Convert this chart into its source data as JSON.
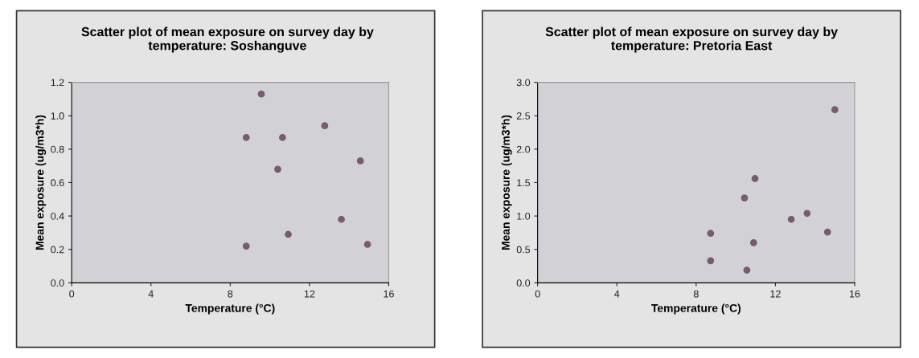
{
  "chart_data": [
    {
      "type": "scatter",
      "title": "Scatter plot of mean exposure on survey day by temperature: Soshanguve",
      "xlabel": "Temperature (°C)",
      "ylabel": "Mean exposure (ug/m3*h)",
      "xlim": [
        0,
        16
      ],
      "xticks": [
        0,
        4,
        8,
        12,
        16
      ],
      "ylim": [
        0,
        1.2
      ],
      "yticks": [
        {
          "value": 0,
          "label": "0.0"
        },
        {
          "value": 0.2,
          "label": "0.2"
        },
        {
          "value": 0.4,
          "label": "0.4"
        },
        {
          "value": 0.6,
          "label": "0.6"
        },
        {
          "value": 0.8,
          "label": "0.8"
        },
        {
          "value": 1.0,
          "label": "1.0"
        },
        {
          "value": 1.2,
          "label": "1.2"
        }
      ],
      "grid": false,
      "legend": false,
      "marker": "circle",
      "series": [
        {
          "color": "#7a5a6e",
          "x": [
            9.57,
            12.77,
            8.81,
            10.64,
            14.57,
            10.4,
            13.61,
            10.93,
            8.81,
            14.93
          ],
          "values": [
            1.13,
            0.94,
            0.87,
            0.87,
            0.73,
            0.68,
            0.38,
            0.29,
            0.22,
            0.23
          ]
        }
      ]
    },
    {
      "type": "scatter",
      "title": "Scatter plot of mean exposure on survey day by temperature: Pretoria East",
      "xlabel": "Temperature (°C)",
      "ylabel": "Mean exposure (ug/m3*h)",
      "xlim": [
        0,
        16
      ],
      "xticks": [
        0,
        4,
        8,
        12,
        16
      ],
      "ylim": [
        0,
        3.0
      ],
      "yticks": [
        {
          "value": 0,
          "label": "0.0"
        },
        {
          "value": 0.5,
          "label": "0.5"
        },
        {
          "value": 1.0,
          "label": "1.0"
        },
        {
          "value": 1.5,
          "label": "1.5"
        },
        {
          "value": 2.0,
          "label": "2.0"
        },
        {
          "value": 2.5,
          "label": "2.5"
        },
        {
          "value": 3.0,
          "label": "3.0"
        }
      ],
      "grid": false,
      "legend": false,
      "marker": "circle",
      "series": [
        {
          "color": "#7a5a6e",
          "x": [
            15.0,
            10.97,
            10.44,
            13.6,
            12.8,
            8.73,
            14.63,
            10.9,
            8.73,
            10.56
          ],
          "values": [
            2.59,
            1.56,
            1.27,
            1.04,
            0.95,
            0.74,
            0.76,
            0.6,
            0.33,
            0.19
          ]
        }
      ]
    }
  ]
}
